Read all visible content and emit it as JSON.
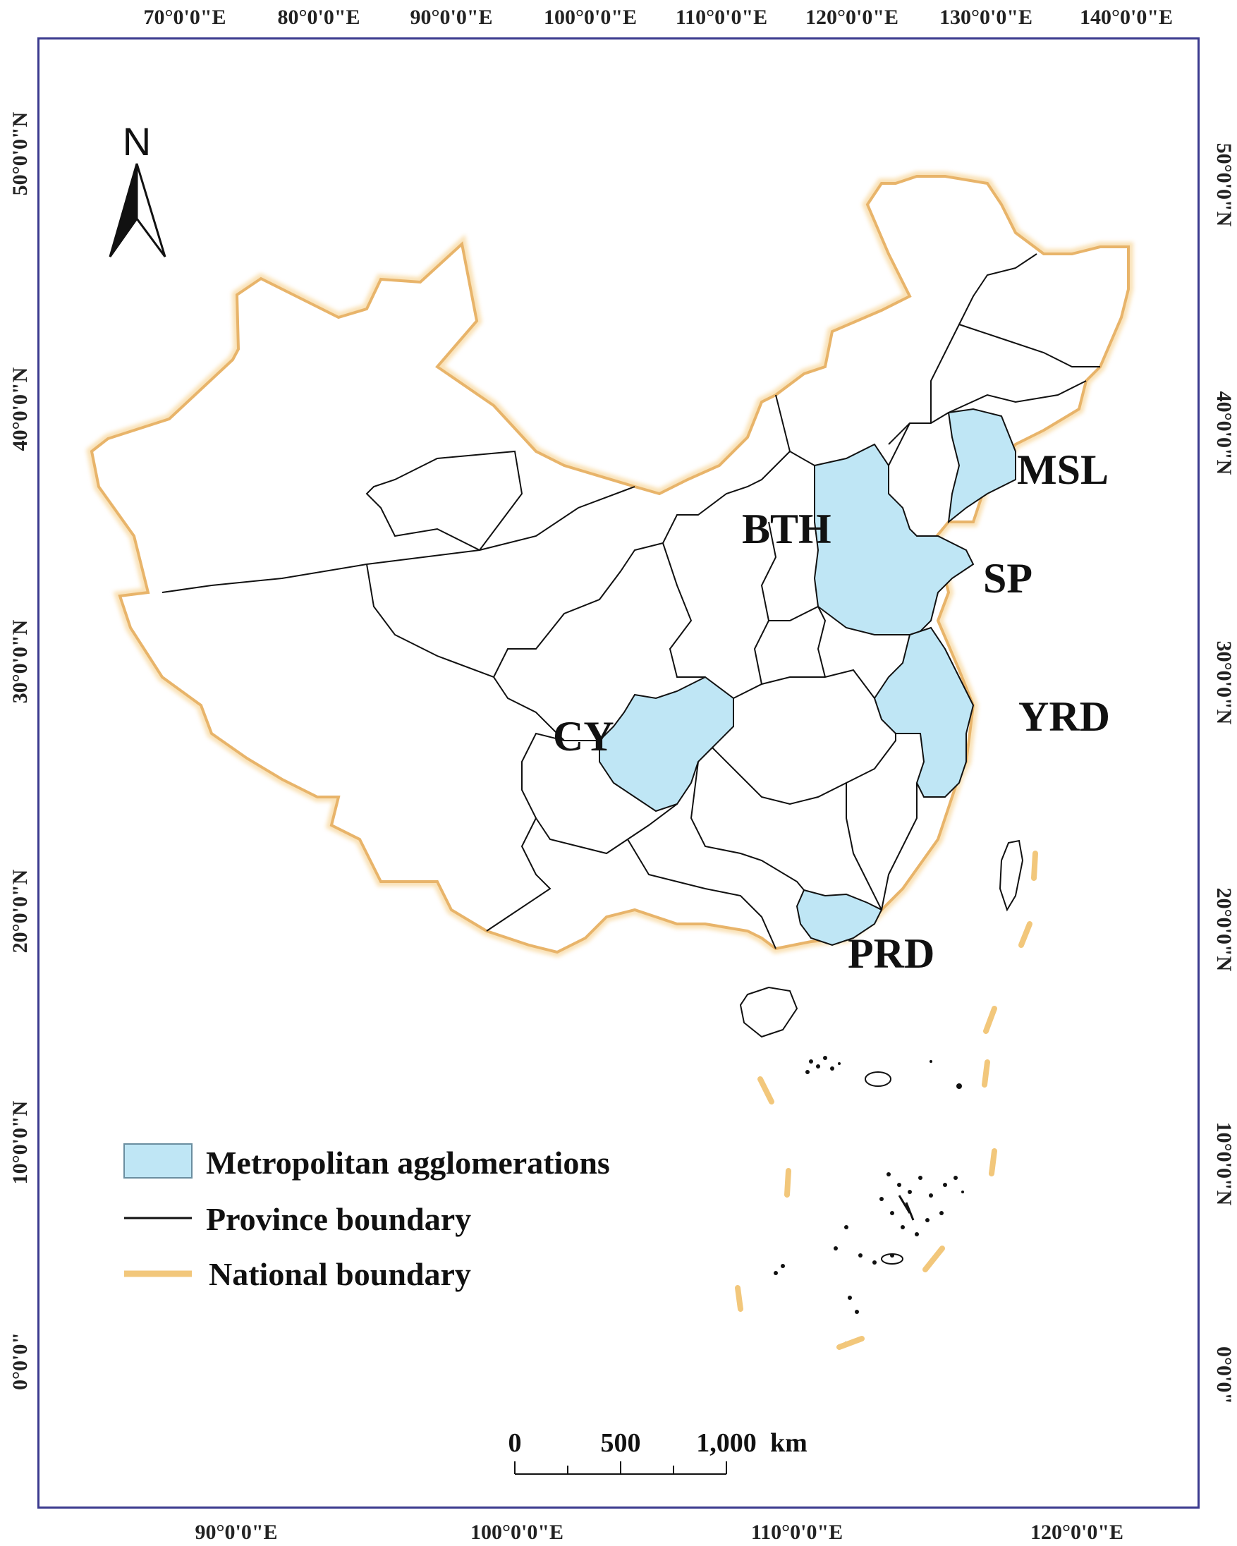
{
  "map": {
    "top_lon_labels": [
      "70°0'0\"E",
      "80°0'0\"E",
      "90°0'0\"E",
      "100°0'0\"E",
      "110°0'0\"E",
      "120°0'0\"E",
      "130°0'0\"E",
      "140°0'0\"E"
    ],
    "bottom_lon_labels": [
      "90°0'0\"E",
      "100°0'0\"E",
      "110°0'0\"E",
      "120°0'0\"E"
    ],
    "left_lat_labels": [
      "50°0'0\"N",
      "40°0'0\"N",
      "30°0'0\"N",
      "20°0'0\"N",
      "10°0'0\"N",
      "0°0'0\""
    ],
    "right_lat_labels": [
      "50°0'0\"N",
      "40°0'0\"N",
      "30°0'0\"N",
      "20°0'0\"N",
      "10°0'0\"N",
      "0°0'0\""
    ],
    "regions": [
      "MSL",
      "BTH",
      "SP",
      "YRD",
      "CY",
      "PRD"
    ],
    "north_arrow": "N",
    "legend": {
      "metro": "Metropolitan agglomerations",
      "province": "Province boundary",
      "national": "National boundary"
    },
    "scale": {
      "ticks": [
        "0",
        "500",
        "1,000"
      ],
      "unit": "km"
    },
    "colors": {
      "frame": "#3b3a8e",
      "metro_fill": "#bfe6f5",
      "province_line": "#111111",
      "national_line": "#f2c77b"
    }
  }
}
